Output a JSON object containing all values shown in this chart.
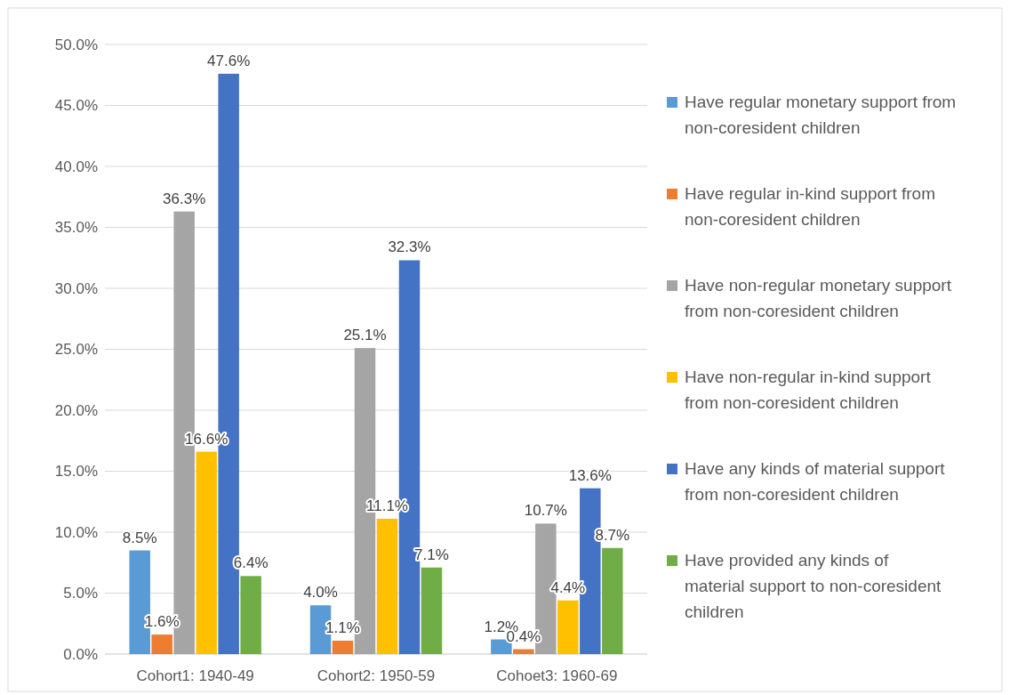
{
  "chart_data": {
    "type": "bar",
    "categories": [
      "Cohort1: 1940-49",
      "Cohort2: 1950-59",
      "Cohoet3: 1960-69"
    ],
    "series": [
      {
        "name": "Have regular monetary support from non-coresident children",
        "color": "#5b9bd5",
        "values": [
          8.5,
          4.0,
          1.2
        ],
        "value_labels": [
          "8.5%",
          "4.0%",
          "1.2%"
        ]
      },
      {
        "name": "Have regular in-kind support from non-coresident children",
        "color": "#ed7d31",
        "values": [
          1.6,
          1.1,
          0.4
        ],
        "value_labels": [
          "1.6%",
          "1.1%",
          "0.4%"
        ]
      },
      {
        "name": "Have non-regular monetary support from non-coresident children",
        "color": "#a5a5a5",
        "values": [
          36.3,
          25.1,
          10.7
        ],
        "value_labels": [
          "36.3%",
          "25.1%",
          "10.7%"
        ]
      },
      {
        "name": "Have non-regular in-kind support from non-coresident children",
        "color": "#ffc000",
        "values": [
          16.6,
          11.1,
          4.4
        ],
        "value_labels": [
          "16.6%",
          "11.1%",
          "4.4%"
        ]
      },
      {
        "name": "Have any kinds of material support from non-coresident children",
        "color": "#4472c4",
        "values": [
          47.6,
          32.3,
          13.6
        ],
        "value_labels": [
          "47.6%",
          "32.3%",
          "13.6%"
        ]
      },
      {
        "name": "Have provided any kinds of material support to non-coresident children",
        "color": "#70ad47",
        "values": [
          6.4,
          7.1,
          8.7
        ],
        "value_labels": [
          "6.4%",
          "7.1%",
          "8.7%"
        ]
      }
    ],
    "ylim": [
      0,
      50
    ],
    "yticks": [
      {
        "value": 0,
        "label": "0.0%"
      },
      {
        "value": 5,
        "label": "5.0%"
      },
      {
        "value": 10,
        "label": "10.0%"
      },
      {
        "value": 15,
        "label": "15.0%"
      },
      {
        "value": 20,
        "label": "20.0%"
      },
      {
        "value": 25,
        "label": "25.0%"
      },
      {
        "value": 30,
        "label": "30.0%"
      },
      {
        "value": 35,
        "label": "35.0%"
      },
      {
        "value": 40,
        "label": "40.0%"
      },
      {
        "value": 45,
        "label": "45.0%"
      },
      {
        "value": 50,
        "label": "50.0%"
      }
    ],
    "grid": "y",
    "legend": "right"
  }
}
